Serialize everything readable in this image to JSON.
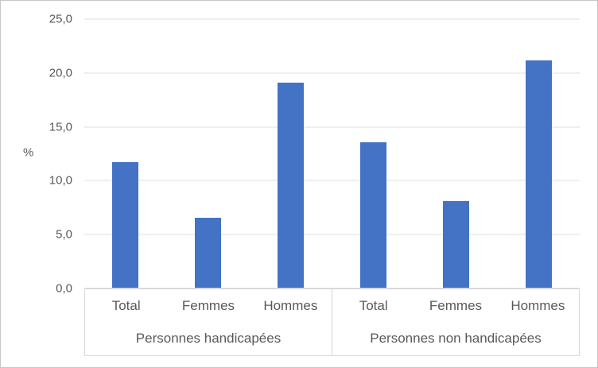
{
  "chart_data": {
    "type": "bar",
    "title": "",
    "ylabel": "%",
    "ylim": [
      0,
      25
    ],
    "ytick_step": 5,
    "ytick_labels": [
      "0,0",
      "5,0",
      "10,0",
      "15,0",
      "20,0",
      "25,0"
    ],
    "grid": true,
    "legend": "none",
    "bar_color": "#4472C4",
    "categories": [
      "Total",
      "Femmes",
      "Hommes"
    ],
    "groups": [
      {
        "label": "Personnes handicapées",
        "categories": [
          "Total",
          "Femmes",
          "Hommes"
        ],
        "values": [
          11.7,
          6.6,
          19.1
        ]
      },
      {
        "label": "Personnes non handicapées",
        "categories": [
          "Total",
          "Femmes",
          "Hommes"
        ],
        "values": [
          13.6,
          8.1,
          21.2
        ]
      }
    ]
  }
}
